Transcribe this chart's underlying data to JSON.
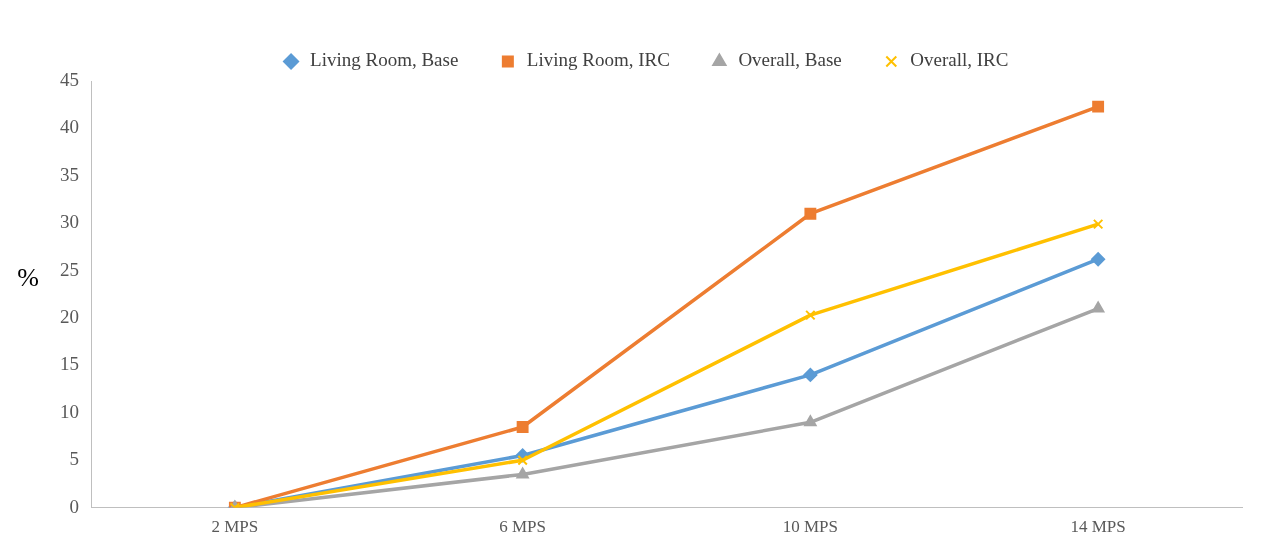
{
  "chart_data": {
    "type": "line",
    "ylabel": "%",
    "categories": [
      "2 MPS",
      "6 MPS",
      "10 MPS",
      "14 MPS"
    ],
    "ylim": [
      0,
      45
    ],
    "yticks": [
      0,
      5,
      10,
      15,
      20,
      25,
      30,
      35,
      40,
      45
    ],
    "grid": false,
    "legend": "top",
    "line_style": "solid",
    "series": [
      {
        "name": "Living Room, Base",
        "color": "#5b9bd5",
        "marker": "diamond",
        "values": [
          0,
          5.5,
          14,
          26.2
        ]
      },
      {
        "name": "Living Room, IRC",
        "color": "#ed7d31",
        "marker": "square",
        "values": [
          0,
          8.5,
          31,
          42.3
        ]
      },
      {
        "name": "Overall, Base",
        "color": "#a5a5a5",
        "marker": "triangle",
        "values": [
          0,
          3.5,
          9,
          21
        ]
      },
      {
        "name": "Overall, IRC",
        "color": "#ffc000",
        "marker": "cross",
        "values": [
          0,
          5,
          20.3,
          29.9
        ]
      }
    ]
  }
}
